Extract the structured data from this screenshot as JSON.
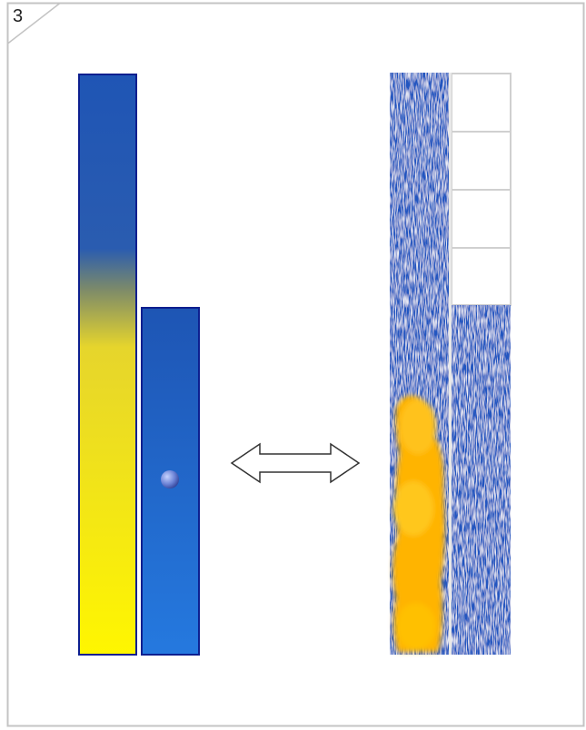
{
  "panel": {
    "number": "3"
  }
}
